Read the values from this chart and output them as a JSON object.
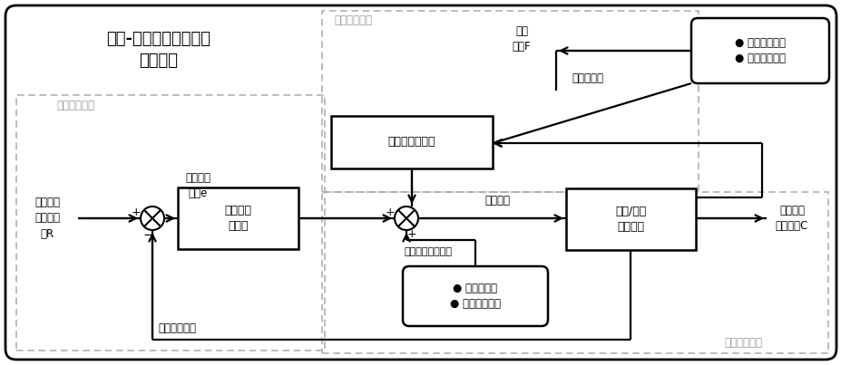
{
  "title": "前馈-反馈复合控制行为\n状态匹配",
  "fig_bg": "#ffffff",
  "label_feedback_ctrl": "场景反馈控制",
  "label_feedforward_ctrl": "场景前馈控制",
  "label_comprehensive": "场景综合优化",
  "label_map_feedback": "映射反馈\n控制器",
  "label_map_feedforward": "映射前馈控制器",
  "label_plant": "设备/系统\n动态模型",
  "label_external": "● 外部指令输入\n● 作业行为规则",
  "label_process": "● 工艺流程库\n● 异常处理规则",
  "label_input": "实时感知\n的物理状\n态R",
  "label_output": "设备场景\n行为状态C",
  "label_state_disturb": "状态\n扰动F",
  "label_analyze": "解析、预测",
  "label_scene_state": "场景状态\n偏差e",
  "label_scene_data": "场景状态数据",
  "label_action": "动作指令",
  "label_scene_opt": "（场景优化匹配）"
}
